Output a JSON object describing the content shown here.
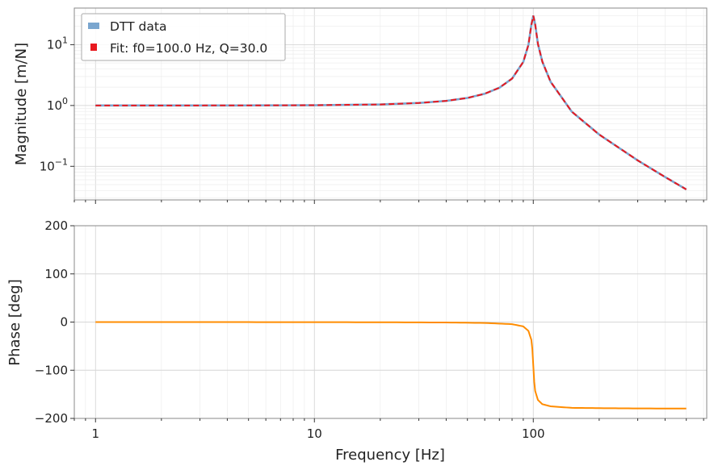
{
  "chart_data": [
    {
      "type": "line",
      "panel": "magnitude",
      "title": "",
      "xlabel": "",
      "ylabel": "Magnitude [m/N]",
      "xscale": "log",
      "yscale": "log",
      "xlim": [
        0.8,
        620
      ],
      "ylim": [
        0.028,
        40
      ],
      "grid": true,
      "yticks": [
        {
          "value": 10,
          "base": "10",
          "exp": "1"
        },
        {
          "value": 1,
          "base": "10",
          "exp": "0"
        },
        {
          "value": 0.1,
          "base": "10",
          "exp": "−1"
        }
      ],
      "legend": {
        "position": "top-left",
        "entries": [
          "DTT data",
          "Fit: f0=100.0 Hz, Q=30.0"
        ]
      },
      "series": [
        {
          "name": "DTT data",
          "color": "#7aa6cf",
          "style": "solid",
          "x": [
            1,
            2,
            5,
            10,
            20,
            30,
            40,
            50,
            60,
            70,
            80,
            90,
            95,
            98,
            100,
            102,
            105,
            110,
            120,
            150,
            200,
            300,
            400,
            500
          ],
          "y": [
            1.0,
            1.0,
            1.003,
            1.01,
            1.04,
            1.1,
            1.19,
            1.33,
            1.56,
            1.96,
            2.77,
            5.2,
            9.9,
            21.2,
            30.0,
            21.6,
            10.3,
            5.25,
            2.45,
            0.79,
            0.333,
            0.125,
            0.0667,
            0.0417
          ]
        },
        {
          "name": "Fit: f0=100.0 Hz, Q=30.0",
          "color": "#e8191f",
          "style": "dashed",
          "x": [
            1,
            2,
            5,
            10,
            20,
            30,
            40,
            50,
            60,
            70,
            80,
            90,
            95,
            98,
            100,
            102,
            105,
            110,
            120,
            150,
            200,
            300,
            400,
            500
          ],
          "y": [
            1.0,
            1.0,
            1.003,
            1.01,
            1.04,
            1.1,
            1.19,
            1.33,
            1.56,
            1.96,
            2.77,
            5.2,
            9.9,
            21.2,
            30.0,
            21.6,
            10.3,
            5.25,
            2.45,
            0.79,
            0.333,
            0.125,
            0.0667,
            0.0417
          ]
        }
      ]
    },
    {
      "type": "line",
      "panel": "phase",
      "title": "",
      "xlabel": "Frequency [Hz]",
      "ylabel": "Phase [deg]",
      "xscale": "log",
      "yscale": "linear",
      "xlim": [
        0.8,
        620
      ],
      "ylim": [
        -200,
        200
      ],
      "grid": true,
      "xticks": [
        "1",
        "10",
        "100"
      ],
      "yticks": [
        "200",
        "100",
        "0",
        "−100",
        "−200"
      ],
      "series": [
        {
          "color": "#ff8c00",
          "style": "solid",
          "x": [
            1,
            2,
            5,
            10,
            20,
            40,
            60,
            80,
            90,
            95,
            98,
            99,
            100,
            101,
            102,
            105,
            110,
            120,
            150,
            200,
            300,
            500
          ],
          "y": [
            -0.02,
            -0.04,
            -0.1,
            -0.19,
            -0.4,
            -0.9,
            -1.8,
            -4.4,
            -9.0,
            -18.3,
            -37.0,
            -56.0,
            -90.0,
            -124.0,
            -143.0,
            -161.7,
            -170.5,
            -174.9,
            -178.1,
            -178.7,
            -179.3,
            -179.6
          ]
        }
      ]
    }
  ]
}
